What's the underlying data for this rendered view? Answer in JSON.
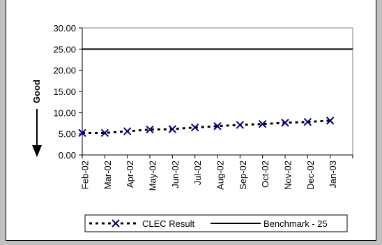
{
  "chart_data": {
    "type": "line",
    "title": "",
    "xlabel": "",
    "ylabel": "Good",
    "ylim": [
      0,
      30
    ],
    "yticks": [
      "0.00",
      "5.00",
      "10.00",
      "15.00",
      "20.00",
      "25.00",
      "30.00"
    ],
    "categories": [
      "Feb-02",
      "Mar-02",
      "Apr-02",
      "May-02",
      "Jun-02",
      "Jul-02",
      "Aug-02",
      "Sep-02",
      "Oct-02",
      "Nov-02",
      "Dec-02",
      "Jan-03"
    ],
    "series": [
      {
        "name": "CLEC Result",
        "values": [
          5.2,
          5.2,
          5.6,
          6.0,
          6.1,
          6.5,
          6.8,
          7.1,
          7.3,
          7.6,
          7.8,
          8.1
        ],
        "color": "#000080",
        "line_color": "#000000",
        "marker": "x",
        "line_style": "dashed"
      },
      {
        "name": "Benchmark -  25",
        "values": [
          25,
          25,
          25,
          25,
          25,
          25,
          25,
          25,
          25,
          25,
          25,
          25
        ],
        "color": "#000000",
        "line_style": "solid"
      }
    ],
    "grid": false,
    "legend_position": "bottom",
    "arrow_direction": "down"
  }
}
